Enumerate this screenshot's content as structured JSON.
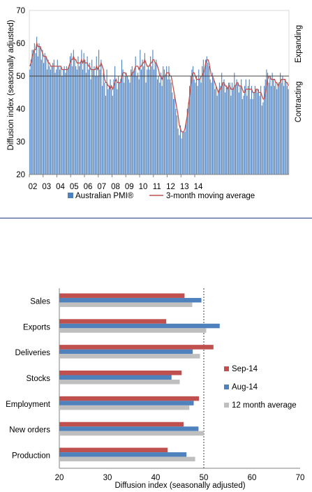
{
  "chart_data": [
    {
      "type": "bar",
      "ylabel": "Diffusion index (seasonally adjusted)",
      "ylim": [
        20,
        70
      ],
      "yticks": [
        "20",
        "30",
        "40",
        "50",
        "60",
        "70"
      ],
      "reference_line": 50,
      "x_tick_labels": [
        "02",
        "03",
        "04",
        "05",
        "06",
        "07",
        "08",
        "09",
        "10",
        "11",
        "12",
        "13",
        "14"
      ],
      "start_year": 2002,
      "side_labels": {
        "expanding": "Expanding",
        "contracting": "Contracting"
      },
      "legend": {
        "bar_label": "Australian PMI®",
        "line_label": "3-month moving average",
        "placement": "bottom"
      },
      "colors": {
        "bars": "#4f81bd",
        "line": "#c0504d",
        "reference": "#404040"
      },
      "series": [
        {
          "name": "Australian PMI®",
          "values": [
            52,
            55,
            58,
            58,
            60,
            57,
            62,
            56,
            60,
            59,
            55,
            58,
            54,
            57,
            56,
            52,
            55,
            53,
            52,
            53,
            54,
            55,
            51,
            52,
            55,
            53,
            52,
            53,
            50,
            52,
            53,
            51,
            53,
            52,
            53,
            56,
            57,
            53,
            58,
            55,
            53,
            52,
            56,
            53,
            54,
            58,
            52,
            57,
            55,
            51,
            56,
            52,
            54,
            49,
            55,
            52,
            53,
            50,
            56,
            50,
            58,
            52,
            55,
            47,
            51,
            48,
            44,
            52,
            46,
            47,
            49,
            46,
            44,
            49,
            53,
            48,
            46,
            50,
            48,
            49,
            55,
            52,
            48,
            50,
            51,
            50,
            49,
            48,
            52,
            53,
            51,
            52,
            56,
            50,
            51,
            49,
            58,
            52,
            55,
            53,
            57,
            48,
            52,
            53,
            52,
            56,
            53,
            58,
            52,
            54,
            55,
            49,
            50,
            48,
            51,
            47,
            53,
            52,
            50,
            53,
            49,
            53,
            49,
            48,
            45,
            43,
            44,
            40,
            38,
            34,
            32,
            35,
            31,
            33,
            33,
            33,
            36,
            40,
            42,
            47,
            50,
            52,
            53,
            49,
            48,
            50,
            47,
            52,
            49,
            48,
            53,
            55,
            52,
            55,
            56,
            54,
            53,
            49,
            48,
            51,
            49,
            46,
            47,
            44,
            45,
            48,
            47,
            51,
            48,
            49,
            45,
            47,
            46,
            48,
            48,
            44,
            48,
            46,
            51,
            47,
            49,
            48,
            45,
            47,
            49,
            43,
            44,
            47,
            49,
            44,
            47,
            49,
            43,
            47,
            43,
            45,
            47,
            46,
            45,
            46,
            44,
            47,
            41,
            42,
            47,
            49,
            52,
            51,
            48,
            50,
            47,
            51,
            49,
            47,
            48,
            46,
            47,
            48,
            51,
            48,
            50,
            47,
            49,
            48,
            47,
            46
          ]
        },
        {
          "name": "3-month moving average",
          "values": [
            53,
            54,
            56,
            57,
            58,
            58,
            60,
            59,
            59,
            59,
            58,
            57,
            56,
            56,
            56,
            55,
            54,
            54,
            53,
            53,
            53,
            53,
            53,
            53,
            53,
            53,
            53,
            53,
            52,
            52,
            52,
            52,
            52,
            52,
            53,
            54,
            55,
            55,
            56,
            55,
            55,
            54,
            54,
            54,
            54,
            55,
            54,
            55,
            54,
            54,
            54,
            53,
            53,
            52,
            52,
            52,
            52,
            52,
            53,
            52,
            53,
            53,
            54,
            53,
            52,
            49,
            48,
            48,
            47,
            47,
            46,
            47,
            46,
            47,
            48,
            49,
            48,
            48,
            48,
            48,
            50,
            51,
            51,
            51,
            50,
            50,
            50,
            50,
            50,
            51,
            51,
            52,
            53,
            53,
            53,
            52,
            53,
            53,
            54,
            54,
            55,
            54,
            53,
            53,
            53,
            54,
            54,
            55,
            55,
            54,
            54,
            53,
            52,
            50,
            50,
            49,
            50,
            50,
            50,
            51,
            51,
            51,
            50,
            50,
            48,
            46,
            44,
            42,
            40,
            38,
            35,
            34,
            33,
            33,
            33,
            34,
            36,
            38,
            41,
            44,
            47,
            50,
            51,
            51,
            50,
            49,
            49,
            49,
            49,
            50,
            50,
            51,
            52,
            54,
            55,
            55,
            54,
            52,
            50,
            50,
            49,
            48,
            47,
            46,
            45,
            46,
            46,
            47,
            48,
            48,
            47,
            47,
            46,
            47,
            47,
            46,
            46,
            46,
            47,
            47,
            48,
            48,
            47,
            47,
            47,
            46,
            45,
            45,
            46,
            46,
            46,
            46,
            46,
            46,
            45,
            45,
            45,
            46,
            46,
            45,
            45,
            45,
            44,
            43,
            43,
            45,
            47,
            49,
            50,
            50,
            49,
            49,
            49,
            49,
            48,
            48,
            47,
            48,
            48,
            49,
            49,
            49,
            49,
            48,
            48,
            47
          ]
        }
      ]
    },
    {
      "type": "bar",
      "orientation": "horizontal",
      "xlabel": "Diffusion index (seasonally adjusted)",
      "xlim": [
        20,
        70
      ],
      "xticks": [
        "20",
        "30",
        "40",
        "50",
        "60",
        "70"
      ],
      "reference_line": 50,
      "categories": [
        "Sales",
        "Exports",
        "Deliveries",
        "Stocks",
        "Employment",
        "New orders",
        "Production"
      ],
      "series": [
        {
          "name": "Sep-14",
          "color": "#c0504d",
          "values": [
            46.0,
            42.2,
            52.0,
            45.4,
            49.0,
            45.8,
            42.5
          ]
        },
        {
          "name": "Aug-14",
          "color": "#4f81bd",
          "values": [
            49.5,
            53.3,
            47.7,
            43.3,
            47.9,
            48.9,
            46.4
          ]
        },
        {
          "name": "12 month average",
          "color": "#bfbfbf",
          "values": [
            47.6,
            50.5,
            49.2,
            45.0,
            47.0,
            50.0,
            48.2
          ]
        }
      ],
      "legend_placement": "right"
    }
  ]
}
